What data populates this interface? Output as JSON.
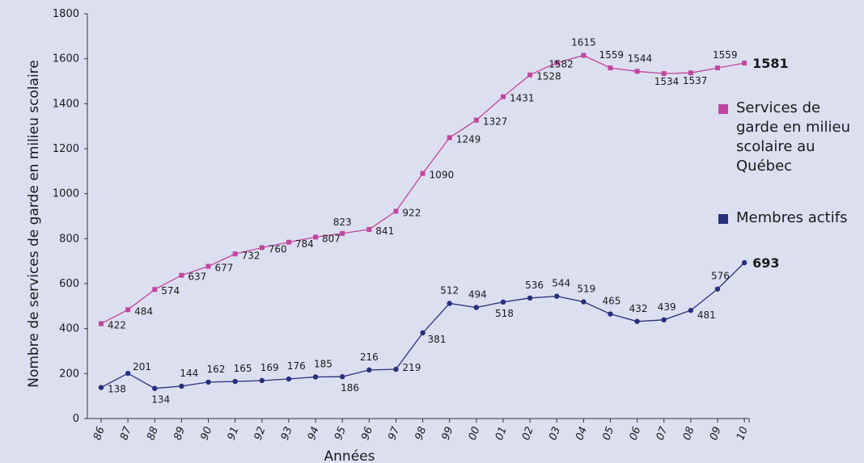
{
  "chart_data": {
    "type": "line",
    "xlabel": "Années",
    "ylabel": "Nombre de services de garde en milieu scolaire",
    "ylim": [
      0,
      1800
    ],
    "yticks": [
      0,
      200,
      400,
      600,
      800,
      1000,
      1200,
      1400,
      1600,
      1800
    ],
    "categories": [
      "86",
      "87",
      "88",
      "89",
      "90",
      "91",
      "92",
      "93",
      "94",
      "95",
      "96",
      "97",
      "98",
      "99",
      "00",
      "01",
      "02",
      "03",
      "04",
      "05",
      "06",
      "07",
      "08",
      "09",
      "10"
    ],
    "grid": false,
    "legend_position": "right",
    "series": [
      {
        "name": "Services de garde en milieu scolaire au Québec",
        "color": "#c0479d",
        "marker": "square",
        "values": [
          422,
          484,
          574,
          637,
          677,
          732,
          760,
          784,
          807,
          823,
          841,
          922,
          1090,
          1249,
          1327,
          1431,
          1528,
          1582,
          1615,
          1559,
          1544,
          1534,
          1537,
          1559,
          1581
        ],
        "labels": [
          "422",
          "484",
          "574",
          "637",
          "677",
          "732",
          "760",
          "784",
          "807",
          "823",
          "841",
          "922",
          "1090",
          "1249",
          "1327",
          "1431",
          "1528",
          "1582",
          "1615",
          "1559",
          "1544",
          "1534",
          "1537",
          "1559",
          "1581"
        ]
      },
      {
        "name": "Membres actifs",
        "color": "#27307a",
        "marker": "circle",
        "values": [
          138,
          201,
          134,
          144,
          162,
          165,
          169,
          176,
          185,
          186,
          216,
          219,
          381,
          512,
          494,
          518,
          536,
          544,
          519,
          465,
          432,
          439,
          481,
          576,
          693
        ],
        "labels": [
          "138",
          "201",
          "134",
          "144",
          "162",
          "165",
          "169",
          "176",
          "185",
          "186",
          "216",
          "219",
          "381",
          "512",
          "494",
          "518",
          "536",
          "544",
          "519",
          "465",
          "432",
          "439",
          "481",
          "576",
          "693"
        ]
      }
    ]
  },
  "legend": {
    "items": [
      {
        "label": "Services de garde en milieu scolaire au Québec",
        "color": "#c0479d"
      },
      {
        "label": "Membres actifs",
        "color": "#27307a"
      }
    ]
  }
}
